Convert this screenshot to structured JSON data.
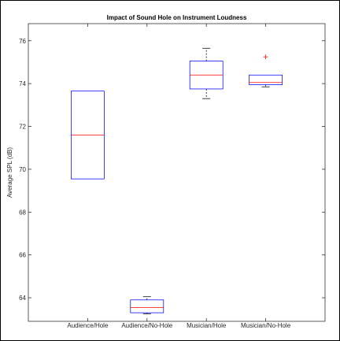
{
  "chart_data": {
    "type": "box",
    "title": "Impact of Sound Hole on Instrument Loudness",
    "xlabel": "",
    "ylabel": "Average SPL (dB)",
    "ylim": [
      62.9,
      76.8
    ],
    "yticks": [
      64,
      66,
      68,
      70,
      72,
      74,
      76
    ],
    "grid": false,
    "categories": [
      "Audience/Hole",
      "Audience/No-Hole",
      "Musician/Hole",
      "Musician/No-Hole"
    ],
    "boxes": [
      {
        "category": "Audience/Hole",
        "whisker_low": 69.55,
        "q1": 69.55,
        "median": 71.6,
        "q3": 73.65,
        "whisker_high": 73.65,
        "outliers": []
      },
      {
        "category": "Audience/No-Hole",
        "whisker_low": 63.25,
        "q1": 63.3,
        "median": 63.55,
        "q3": 63.9,
        "whisker_high": 64.05,
        "outliers": []
      },
      {
        "category": "Musician/Hole",
        "whisker_low": 73.3,
        "q1": 73.75,
        "median": 74.4,
        "q3": 75.05,
        "whisker_high": 75.65,
        "outliers": []
      },
      {
        "category": "Musician/No-Hole",
        "whisker_low": 73.85,
        "q1": 73.95,
        "median": 74.05,
        "q3": 74.4,
        "whisker_high": 74.4,
        "outliers": [
          75.25
        ]
      }
    ],
    "colors": {
      "box": "#0000ff",
      "median": "#ff0000",
      "whisker": "#000000",
      "outlier": "#ff0000",
      "axes": "#262626"
    }
  }
}
